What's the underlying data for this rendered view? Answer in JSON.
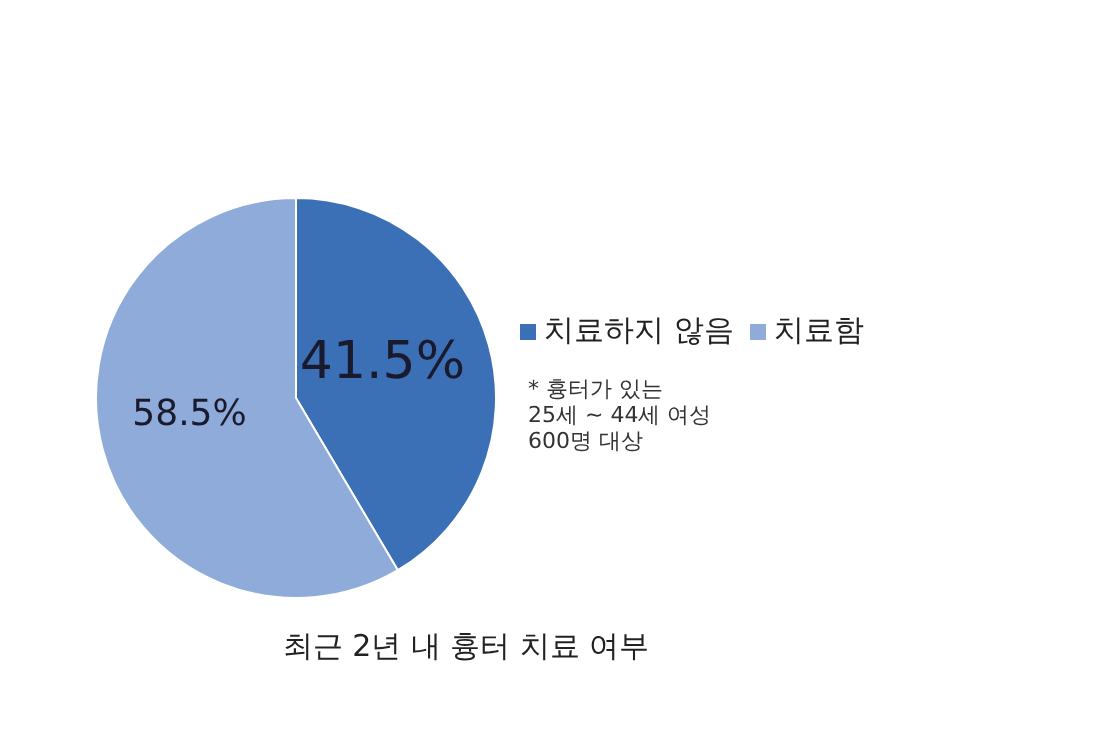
{
  "chart_data": {
    "type": "pie",
    "title": "최근 2년 내 흉터 치료 여부",
    "categories": [
      "치료하지 않음",
      "치료함"
    ],
    "values": [
      41.5,
      58.5
    ],
    "colors": [
      "#3b6fb6",
      "#8eabd9"
    ],
    "value_labels": [
      "41.5%",
      "58.5%"
    ],
    "legend": "right",
    "annotations": [
      "* 흉터가 있는\n25세 ~ 44세 여성\n600명 대상"
    ]
  }
}
